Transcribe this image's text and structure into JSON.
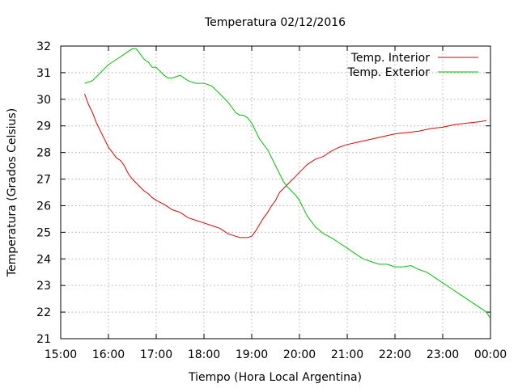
{
  "chart_data": {
    "type": "line",
    "title": "Temperatura 02/12/2016",
    "xlabel": "Tiempo (Hora Local Argentina)",
    "ylabel": "Temperatura (Grados Celsius)",
    "xlim": [
      "15:00",
      "00:00"
    ],
    "ylim": [
      21,
      32
    ],
    "x_ticks": [
      "15:00",
      "16:00",
      "17:00",
      "18:00",
      "19:00",
      "20:00",
      "21:00",
      "22:00",
      "23:00",
      "00:00"
    ],
    "y_ticks": [
      21,
      22,
      23,
      24,
      25,
      26,
      27,
      28,
      29,
      30,
      31,
      32
    ],
    "grid": true,
    "legend_position": "top-right",
    "series": [
      {
        "name": "Temp. Interior",
        "color": "#e00000",
        "x": [
          "15:30",
          "15:35",
          "15:40",
          "15:45",
          "15:50",
          "15:55",
          "16:00",
          "16:05",
          "16:10",
          "16:15",
          "16:20",
          "16:25",
          "16:30",
          "16:35",
          "16:40",
          "16:45",
          "16:50",
          "16:55",
          "17:00",
          "17:10",
          "17:20",
          "17:30",
          "17:40",
          "17:50",
          "18:00",
          "18:10",
          "18:20",
          "18:30",
          "18:35",
          "18:40",
          "18:45",
          "18:50",
          "18:55",
          "19:00",
          "19:05",
          "19:10",
          "19:15",
          "19:20",
          "19:25",
          "19:30",
          "19:35",
          "19:40",
          "19:45",
          "19:50",
          "19:55",
          "20:00",
          "20:10",
          "20:20",
          "20:30",
          "20:40",
          "20:50",
          "21:00",
          "21:15",
          "21:30",
          "21:45",
          "22:00",
          "22:15",
          "22:30",
          "22:45",
          "23:00",
          "23:15",
          "23:30",
          "23:45",
          "23:55"
        ],
        "values": [
          30.2,
          29.8,
          29.5,
          29.1,
          28.8,
          28.5,
          28.2,
          28.0,
          27.8,
          27.7,
          27.5,
          27.2,
          27.0,
          26.85,
          26.7,
          26.55,
          26.45,
          26.3,
          26.2,
          26.05,
          25.85,
          25.75,
          25.55,
          25.45,
          25.35,
          25.25,
          25.15,
          24.95,
          24.9,
          24.85,
          24.8,
          24.8,
          24.8,
          24.85,
          25.05,
          25.3,
          25.55,
          25.75,
          26.0,
          26.2,
          26.5,
          26.65,
          26.8,
          26.95,
          27.1,
          27.25,
          27.55,
          27.75,
          27.85,
          28.05,
          28.2,
          28.3,
          28.4,
          28.5,
          28.6,
          28.7,
          28.75,
          28.8,
          28.9,
          28.95,
          29.05,
          29.1,
          29.15,
          29.2
        ]
      },
      {
        "name": "Temp. Exterior",
        "color": "#00c000",
        "x": [
          "15:30",
          "15:40",
          "15:50",
          "16:00",
          "16:10",
          "16:20",
          "16:25",
          "16:30",
          "16:35",
          "16:40",
          "16:45",
          "16:50",
          "16:55",
          "17:00",
          "17:10",
          "17:15",
          "17:20",
          "17:30",
          "17:40",
          "17:50",
          "18:00",
          "18:10",
          "18:20",
          "18:30",
          "18:40",
          "18:45",
          "18:50",
          "18:55",
          "19:00",
          "19:05",
          "19:10",
          "19:15",
          "19:20",
          "19:25",
          "19:30",
          "19:35",
          "19:40",
          "19:45",
          "19:50",
          "19:55",
          "20:00",
          "20:05",
          "20:10",
          "20:15",
          "20:20",
          "20:30",
          "20:40",
          "20:50",
          "21:00",
          "21:10",
          "21:20",
          "21:30",
          "21:40",
          "21:50",
          "22:00",
          "22:10",
          "22:20",
          "22:30",
          "22:40",
          "22:50",
          "23:00",
          "23:10",
          "23:20",
          "23:30",
          "23:40",
          "23:50",
          "23:55",
          "23:59"
        ],
        "values": [
          30.6,
          30.7,
          31.0,
          31.3,
          31.5,
          31.7,
          31.8,
          31.9,
          31.9,
          31.7,
          31.5,
          31.4,
          31.2,
          31.2,
          30.9,
          30.8,
          30.8,
          30.9,
          30.7,
          30.6,
          30.6,
          30.5,
          30.2,
          29.9,
          29.5,
          29.4,
          29.4,
          29.3,
          29.1,
          28.8,
          28.5,
          28.3,
          28.1,
          27.8,
          27.5,
          27.2,
          26.9,
          26.7,
          26.55,
          26.4,
          26.2,
          25.9,
          25.6,
          25.4,
          25.2,
          24.95,
          24.8,
          24.6,
          24.4,
          24.2,
          24.0,
          23.9,
          23.8,
          23.8,
          23.7,
          23.7,
          23.75,
          23.6,
          23.5,
          23.3,
          23.1,
          22.9,
          22.7,
          22.5,
          22.3,
          22.1,
          22.0,
          21.8
        ]
      }
    ]
  }
}
